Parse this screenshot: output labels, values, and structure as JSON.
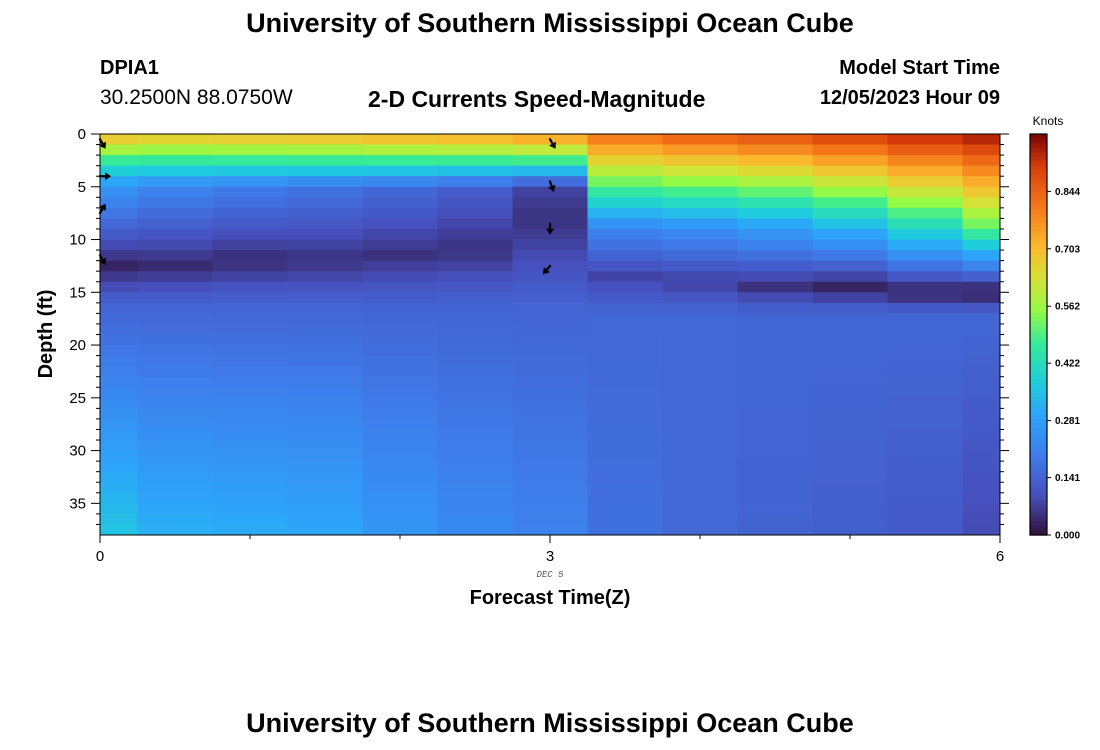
{
  "title_top": "University of Southern Mississippi Ocean Cube",
  "title_bottom": "University of Southern Mississippi Ocean Cube",
  "station": {
    "id": "DPIA1",
    "coords": "30.2500N  88.0750W"
  },
  "subtitle": "2-D Currents Speed-Magnitude",
  "model": {
    "label": "Model Start Time",
    "value": "12/05/2023 Hour 09"
  },
  "chart_data": {
    "type": "heatmap",
    "title": "2-D Currents Speed-Magnitude",
    "xlabel": "Forecast Time(Z)",
    "ylabel": "Depth (ft)",
    "x_ticks": [
      "0",
      "3",
      "6"
    ],
    "y_ticks": [
      "0",
      "5",
      "10",
      "15",
      "20",
      "25",
      "30",
      "35"
    ],
    "xlim": [
      0,
      6
    ],
    "ylim": [
      0,
      38
    ],
    "y_inverted": true,
    "date_label": "DEC 5",
    "colorbar": {
      "title": "Knots",
      "ticks": [
        "0.000",
        "0.141",
        "0.281",
        "0.422",
        "0.562",
        "0.703",
        "0.844"
      ],
      "range": [
        0,
        0.985
      ]
    },
    "x": [
      0,
      0.5,
      1,
      1.5,
      2,
      2.5,
      3,
      3.5,
      4,
      4.5,
      5,
      5.5,
      6
    ],
    "depths": [
      0,
      1,
      2,
      3,
      4,
      5,
      6,
      7,
      8,
      9,
      10,
      11,
      12,
      13,
      14,
      15,
      16,
      17,
      18,
      19,
      20,
      21,
      22,
      23,
      24,
      25,
      26,
      27,
      28,
      29,
      30,
      31,
      32,
      33,
      34,
      35,
      36,
      37
    ],
    "profiles": [
      {
        "x": 0,
        "surface": 0.72,
        "mid": 0.26,
        "minDepth": 12.5,
        "minVal": 0.03,
        "bottom": 0.36,
        "mode": "A"
      },
      {
        "x": 0.5,
        "surface": 0.7,
        "mid": 0.22,
        "minDepth": 12.5,
        "minVal": 0.04,
        "bottom": 0.32,
        "mode": "A"
      },
      {
        "x": 1,
        "surface": 0.71,
        "mid": 0.2,
        "minDepth": 12.0,
        "minVal": 0.04,
        "bottom": 0.31,
        "mode": "A"
      },
      {
        "x": 1.5,
        "surface": 0.72,
        "mid": 0.18,
        "minDepth": 12.0,
        "minVal": 0.05,
        "bottom": 0.3,
        "mode": "A"
      },
      {
        "x": 2,
        "surface": 0.74,
        "mid": 0.16,
        "minDepth": 11.5,
        "minVal": 0.05,
        "bottom": 0.26,
        "mode": "A"
      },
      {
        "x": 2.5,
        "surface": 0.75,
        "mid": 0.13,
        "minDepth": 11.0,
        "minVal": 0.05,
        "bottom": 0.23,
        "mode": "A"
      },
      {
        "x": 3,
        "surface": 0.78,
        "mid": 0.08,
        "minDepth": 8.0,
        "minVal": 0.05,
        "bottom": 0.21,
        "mode": "A"
      },
      {
        "x": 3.5,
        "surface": 0.83,
        "mid": 0.22,
        "minDepth": 13.5,
        "minVal": 0.08,
        "bottom": 0.17,
        "mode": "B"
      },
      {
        "x": 4,
        "surface": 0.86,
        "mid": 0.24,
        "minDepth": 14.0,
        "minVal": 0.07,
        "bottom": 0.15,
        "mode": "B"
      },
      {
        "x": 4.5,
        "surface": 0.88,
        "mid": 0.27,
        "minDepth": 14.5,
        "minVal": 0.05,
        "bottom": 0.14,
        "mode": "B"
      },
      {
        "x": 5,
        "surface": 0.91,
        "mid": 0.32,
        "minDepth": 14.5,
        "minVal": 0.03,
        "bottom": 0.13,
        "mode": "B"
      },
      {
        "x": 5.5,
        "surface": 0.94,
        "mid": 0.4,
        "minDepth": 15.0,
        "minVal": 0.02,
        "bottom": 0.12,
        "mode": "B"
      },
      {
        "x": 6,
        "surface": 0.96,
        "mid": 0.5,
        "minDepth": 15.0,
        "minVal": 0.01,
        "bottom": 0.09,
        "mode": "B"
      }
    ],
    "vectors": [
      {
        "x": 0,
        "depth": 0.5,
        "dir": 150
      },
      {
        "x": 0,
        "depth": 4.0,
        "dir": 90
      },
      {
        "x": 0,
        "depth": 7.5,
        "dir": 30
      },
      {
        "x": 0,
        "depth": 11.5,
        "dir": 150
      },
      {
        "x": 3,
        "depth": 0.5,
        "dir": 150
      },
      {
        "x": 3,
        "depth": 4.5,
        "dir": 160
      },
      {
        "x": 3,
        "depth": 8.5,
        "dir": 180
      },
      {
        "x": 3,
        "depth": 12.5,
        "dir": 220
      }
    ]
  }
}
